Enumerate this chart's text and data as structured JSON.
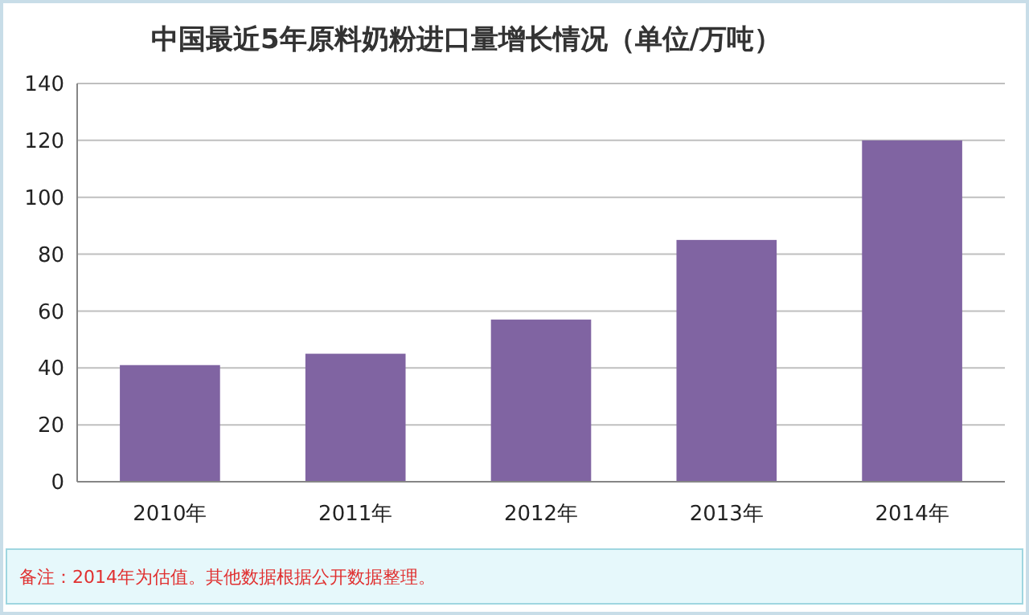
{
  "chart_data": {
    "type": "bar",
    "title": "中国最近5年原料奶粉进口量增长情况（单位/万吨）",
    "categories": [
      "2010年",
      "2011年",
      "2012年",
      "2013年",
      "2014年"
    ],
    "values": [
      41,
      45,
      57,
      85,
      120
    ],
    "color": "#8064a2",
    "ylim": [
      0,
      140
    ],
    "yticks": [
      0,
      20,
      40,
      60,
      80,
      100,
      120,
      140
    ],
    "grid": "y",
    "annotations": [
      "备注：2014年为估值。其他数据根据公开数据整理。"
    ]
  }
}
